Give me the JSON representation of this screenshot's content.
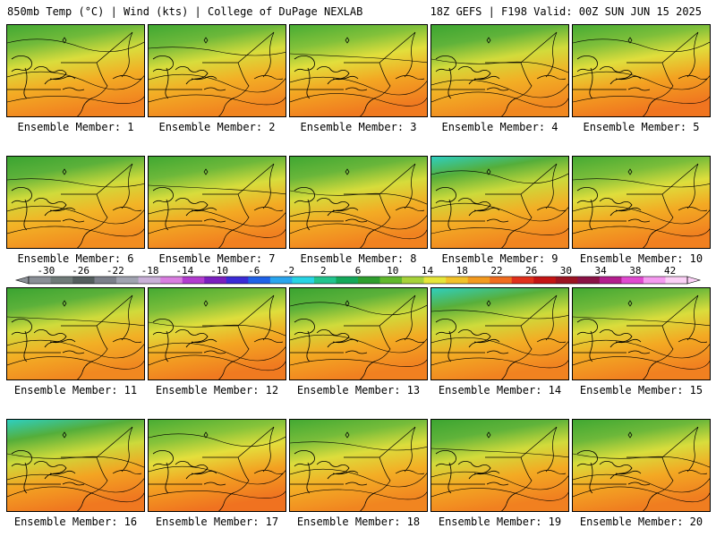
{
  "header": {
    "left": "850mb Temp (°C) | Wind (kts) | College of DuPage NEXLAB",
    "right": "18Z GEFS | F198 Valid: 00Z SUN JUN 15 2025"
  },
  "colorbar": {
    "tick_labels": [
      "-30",
      "-26",
      "-22",
      "-18",
      "-14",
      "-10",
      "-6",
      "-2",
      "2",
      "6",
      "10",
      "14",
      "18",
      "22",
      "26",
      "30",
      "34",
      "38",
      "42"
    ],
    "colors": [
      "#8a8f96",
      "#6f7a78",
      "#545e5e",
      "#7b7f8a",
      "#a0a3b0",
      "#c9b0d8",
      "#d97ee0",
      "#b23ccf",
      "#7b1fbf",
      "#3b2bd6",
      "#1f62e8",
      "#2aa5ee",
      "#28d4e4",
      "#22c48e",
      "#14a85a",
      "#2e9e2e",
      "#61b82d",
      "#a6d23a",
      "#e6e63a",
      "#f2c22a",
      "#f39a1f",
      "#f06c1f",
      "#e0301c",
      "#c41414",
      "#9c1322",
      "#8a1246",
      "#b31e8e",
      "#e04ad0",
      "#f59af0",
      "#fbd0f6"
    ]
  },
  "members": [
    {
      "label": "Ensemble Member: 1",
      "warmth": 0.55,
      "coldness": 0.35
    },
    {
      "label": "Ensemble Member: 2",
      "warmth": 0.5,
      "coldness": 0.4
    },
    {
      "label": "Ensemble Member: 3",
      "warmth": 0.7,
      "coldness": 0.15
    },
    {
      "label": "Ensemble Member: 4",
      "warmth": 0.45,
      "coldness": 0.55
    },
    {
      "label": "Ensemble Member: 5",
      "warmth": 0.8,
      "coldness": 0.2
    },
    {
      "label": "Ensemble Member: 6",
      "warmth": 0.35,
      "coldness": 0.6
    },
    {
      "label": "Ensemble Member: 7",
      "warmth": 0.6,
      "coldness": 0.4
    },
    {
      "label": "Ensemble Member: 8",
      "warmth": 0.55,
      "coldness": 0.45
    },
    {
      "label": "Ensemble Member: 9",
      "warmth": 0.5,
      "coldness": 0.7
    },
    {
      "label": "Ensemble Member: 10",
      "warmth": 0.6,
      "coldness": 0.25
    },
    {
      "label": "Ensemble Member: 11",
      "warmth": 0.45,
      "coldness": 0.6
    },
    {
      "label": "Ensemble Member: 12",
      "warmth": 0.7,
      "coldness": 0.25
    },
    {
      "label": "Ensemble Member: 13",
      "warmth": 0.6,
      "coldness": 0.6
    },
    {
      "label": "Ensemble Member: 14",
      "warmth": 0.55,
      "coldness": 0.65
    },
    {
      "label": "Ensemble Member: 15",
      "warmth": 0.6,
      "coldness": 0.35
    },
    {
      "label": "Ensemble Member: 16",
      "warmth": 0.75,
      "coldness": 0.7
    },
    {
      "label": "Ensemble Member: 17",
      "warmth": 0.85,
      "coldness": 0.1
    },
    {
      "label": "Ensemble Member: 18",
      "warmth": 0.5,
      "coldness": 0.3
    },
    {
      "label": "Ensemble Member: 19",
      "warmth": 0.6,
      "coldness": 0.55
    },
    {
      "label": "Ensemble Member: 20",
      "warmth": 0.65,
      "coldness": 0.4
    }
  ]
}
